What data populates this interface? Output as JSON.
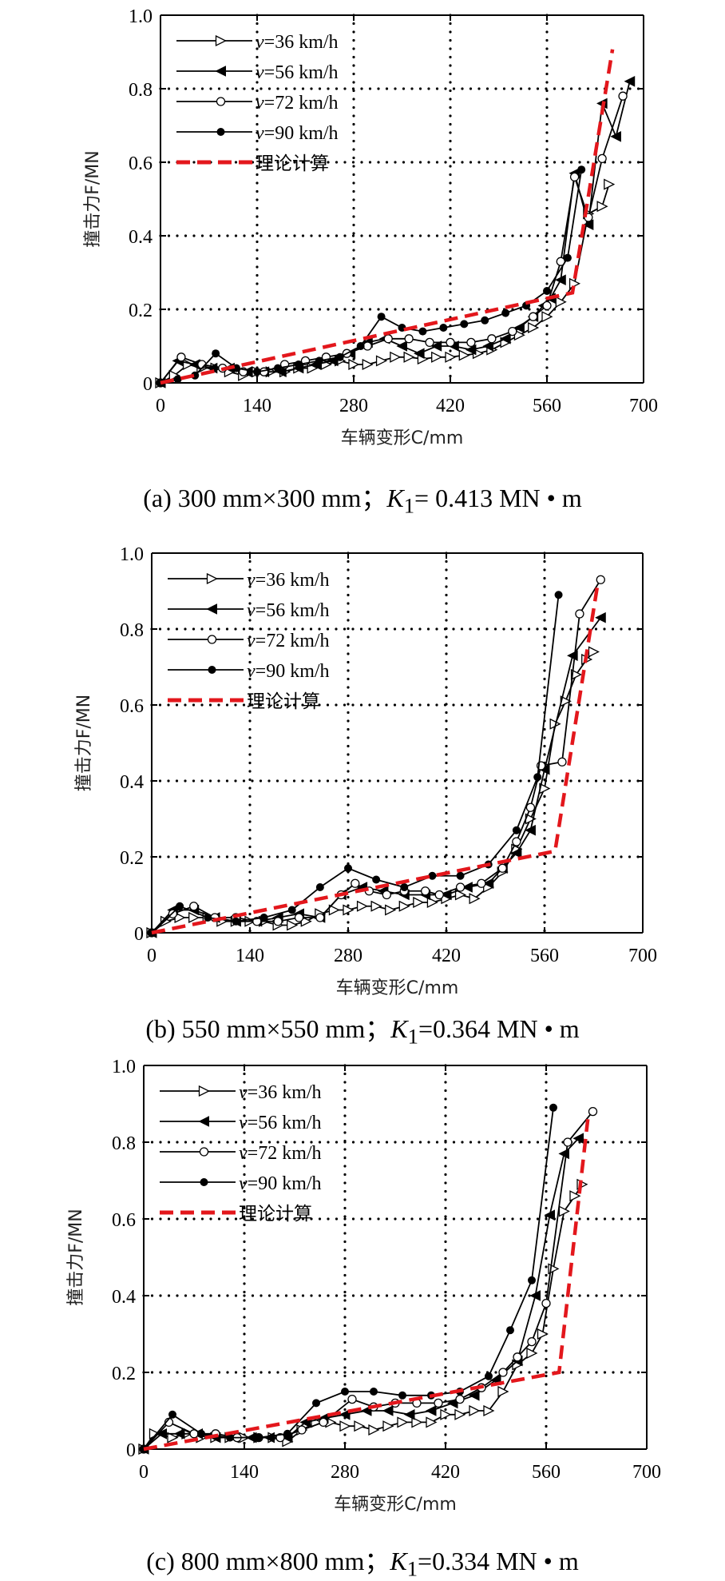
{
  "colors": {
    "series": "#000000",
    "theory": "#e3171c",
    "grid": "#000000"
  },
  "chart_data": [
    {
      "type": "line",
      "panel": "a",
      "caption": {
        "prefix": "(a) 300 mm×300 mm；",
        "k": "K",
        "k_sub": "1",
        "suffix": "= 0.413 MN • m"
      },
      "xlabel": "车辆变形C/mm",
      "ylabel": "撞击力F/MN",
      "xlim": [
        0,
        700
      ],
      "ylim": [
        0,
        1.0
      ],
      "xticks": [
        "0",
        "140",
        "280",
        "420",
        "560",
        "700"
      ],
      "yticks": [
        "0",
        "0.2",
        "0.4",
        "0.6",
        "0.8",
        "1.0"
      ],
      "grid": true,
      "legend": "top-left",
      "series": [
        {
          "name": "v=36 km/h",
          "marker": "triangle-right-open",
          "x": [
            0,
            20,
            40,
            60,
            80,
            100,
            120,
            140,
            160,
            180,
            200,
            220,
            240,
            260,
            280,
            300,
            320,
            340,
            360,
            380,
            400,
            420,
            440,
            460,
            480,
            500,
            520,
            540,
            560,
            580,
            600,
            620,
            640,
            650
          ],
          "y": [
            0,
            0.02,
            0.05,
            0.04,
            0.04,
            0.03,
            0.02,
            0.03,
            0.03,
            0.03,
            0.04,
            0.04,
            0.05,
            0.06,
            0.05,
            0.05,
            0.06,
            0.07,
            0.07,
            0.065,
            0.07,
            0.07,
            0.075,
            0.08,
            0.09,
            0.11,
            0.13,
            0.15,
            0.18,
            0.22,
            0.27,
            0.46,
            0.48,
            0.54
          ]
        },
        {
          "name": "v=56 km/h",
          "marker": "triangle-left-filled",
          "x": [
            0,
            25,
            50,
            75,
            100,
            125,
            150,
            175,
            200,
            225,
            250,
            275,
            300,
            325,
            350,
            375,
            400,
            425,
            450,
            475,
            500,
            520,
            540,
            555,
            565,
            580,
            600,
            620,
            640,
            660,
            680
          ],
          "y": [
            0,
            0.06,
            0.05,
            0.04,
            0.04,
            0.03,
            0.03,
            0.03,
            0.04,
            0.05,
            0.06,
            0.08,
            0.11,
            0.12,
            0.1,
            0.08,
            0.1,
            0.1,
            0.09,
            0.1,
            0.12,
            0.15,
            0.18,
            0.21,
            0.23,
            0.28,
            0.57,
            0.43,
            0.76,
            0.67,
            0.82
          ]
        },
        {
          "name": "v=72 km/h",
          "marker": "circle-open",
          "x": [
            0,
            30,
            60,
            90,
            120,
            150,
            180,
            210,
            240,
            270,
            300,
            330,
            360,
            390,
            420,
            450,
            480,
            510,
            540,
            560,
            580,
            600,
            620,
            640,
            670
          ],
          "y": [
            0,
            0.07,
            0.05,
            0.04,
            0.03,
            0.03,
            0.05,
            0.06,
            0.07,
            0.08,
            0.1,
            0.12,
            0.12,
            0.11,
            0.11,
            0.11,
            0.12,
            0.14,
            0.18,
            0.21,
            0.33,
            0.56,
            0.45,
            0.61,
            0.78
          ]
        },
        {
          "name": "v=90 km/h",
          "marker": "circle-filled",
          "x": [
            0,
            25,
            50,
            80,
            110,
            140,
            170,
            200,
            230,
            260,
            290,
            320,
            350,
            380,
            410,
            440,
            470,
            500,
            530,
            560,
            590,
            610
          ],
          "y": [
            0,
            0.01,
            0.02,
            0.08,
            0.04,
            0.03,
            0.04,
            0.05,
            0.06,
            0.07,
            0.1,
            0.18,
            0.15,
            0.14,
            0.15,
            0.16,
            0.17,
            0.19,
            0.21,
            0.25,
            0.34,
            0.58
          ]
        },
        {
          "name": "理论计算",
          "marker": "none",
          "dashed": true,
          "x": [
            0,
            597,
            655
          ],
          "y": [
            0,
            0.245,
            0.907
          ]
        }
      ]
    },
    {
      "type": "line",
      "panel": "b",
      "caption": {
        "prefix": "(b) 550 mm×550 mm；",
        "k": "K",
        "k_sub": "1",
        "suffix": "=0.364 MN • m"
      },
      "xlabel": "车辆变形C/mm",
      "ylabel": "撞击力F/MN",
      "xlim": [
        0,
        700
      ],
      "ylim": [
        0,
        1.0
      ],
      "xticks": [
        "0",
        "140",
        "280",
        "420",
        "560",
        "700"
      ],
      "yticks": [
        "0",
        "0.2",
        "0.4",
        "0.6",
        "0.8",
        "1.0"
      ],
      "grid": true,
      "legend": "top-left",
      "series": [
        {
          "name": "v=36 km/h",
          "marker": "triangle-right-open",
          "x": [
            0,
            20,
            40,
            60,
            80,
            100,
            120,
            140,
            160,
            180,
            200,
            220,
            240,
            260,
            280,
            300,
            320,
            340,
            360,
            380,
            400,
            420,
            440,
            460,
            480,
            500,
            520,
            540,
            560,
            575,
            590,
            605,
            620,
            630
          ],
          "y": [
            0,
            0.03,
            0.04,
            0.04,
            0.04,
            0.03,
            0.03,
            0.03,
            0.03,
            0.02,
            0.02,
            0.03,
            0.05,
            0.06,
            0.06,
            0.07,
            0.07,
            0.06,
            0.07,
            0.08,
            0.08,
            0.09,
            0.1,
            0.09,
            0.12,
            0.16,
            0.22,
            0.3,
            0.38,
            0.55,
            0.61,
            0.68,
            0.72,
            0.74
          ]
        },
        {
          "name": "v=56 km/h",
          "marker": "triangle-left-filled",
          "x": [
            0,
            30,
            60,
            90,
            120,
            150,
            180,
            210,
            240,
            270,
            300,
            330,
            360,
            390,
            420,
            450,
            480,
            500,
            520,
            540,
            560,
            600,
            640
          ],
          "y": [
            0,
            0.06,
            0.06,
            0.04,
            0.03,
            0.03,
            0.04,
            0.05,
            0.04,
            0.1,
            0.12,
            0.11,
            0.1,
            0.1,
            0.1,
            0.12,
            0.13,
            0.17,
            0.21,
            0.27,
            0.43,
            0.73,
            0.83
          ]
        },
        {
          "name": "v=72 km/h",
          "marker": "circle-open",
          "x": [
            0,
            30,
            60,
            90,
            120,
            150,
            180,
            210,
            240,
            270,
            290,
            310,
            335,
            360,
            390,
            410,
            440,
            470,
            500,
            520,
            540,
            555,
            585,
            610,
            640
          ],
          "y": [
            0,
            0.05,
            0.07,
            0.04,
            0.04,
            0.03,
            0.03,
            0.04,
            0.04,
            0.1,
            0.13,
            0.11,
            0.1,
            0.11,
            0.11,
            0.1,
            0.12,
            0.13,
            0.17,
            0.24,
            0.33,
            0.44,
            0.45,
            0.84,
            0.93
          ]
        },
        {
          "name": "v=90 km/h",
          "marker": "circle-filled",
          "x": [
            0,
            40,
            80,
            120,
            160,
            200,
            240,
            280,
            320,
            360,
            400,
            440,
            480,
            520,
            550,
            580
          ],
          "y": [
            0,
            0.07,
            0.04,
            0.03,
            0.04,
            0.06,
            0.12,
            0.17,
            0.14,
            0.12,
            0.15,
            0.15,
            0.18,
            0.27,
            0.41,
            0.89
          ]
        },
        {
          "name": "理论计算",
          "marker": "none",
          "dashed": true,
          "x": [
            0,
            575,
            635
          ],
          "y": [
            0,
            0.215,
            0.91
          ]
        }
      ]
    },
    {
      "type": "line",
      "panel": "c",
      "caption": {
        "prefix": "(c) 800 mm×800 mm；",
        "k": "K",
        "k_sub": "1",
        "suffix": "=0.334 MN • m"
      },
      "xlabel": "车辆变形C/mm",
      "ylabel": "撞击力F/MN",
      "xlim": [
        0,
        700
      ],
      "ylim": [
        0,
        1.0
      ],
      "xticks": [
        "0",
        "140",
        "280",
        "420",
        "560",
        "700"
      ],
      "yticks": [
        "0",
        "0.2",
        "0.4",
        "0.6",
        "0.8",
        "1.0"
      ],
      "grid": true,
      "legend": "top-left",
      "series": [
        {
          "name": "v=36 km/h",
          "marker": "triangle-right-open",
          "x": [
            0,
            15,
            40,
            60,
            80,
            100,
            120,
            140,
            160,
            180,
            200,
            220,
            240,
            260,
            280,
            300,
            320,
            340,
            360,
            380,
            400,
            420,
            440,
            460,
            480,
            500,
            520,
            540,
            555,
            570,
            585,
            600,
            610
          ],
          "y": [
            0,
            0.04,
            0.03,
            0.04,
            0.03,
            0.03,
            0.03,
            0.03,
            0.03,
            0.03,
            0.02,
            0.05,
            0.07,
            0.07,
            0.06,
            0.06,
            0.05,
            0.06,
            0.07,
            0.07,
            0.07,
            0.09,
            0.09,
            0.1,
            0.1,
            0.15,
            0.22,
            0.25,
            0.3,
            0.47,
            0.62,
            0.66,
            0.69
          ]
        },
        {
          "name": "v=56 km/h",
          "marker": "triangle-left-filled",
          "x": [
            0,
            25,
            50,
            75,
            100,
            125,
            150,
            175,
            200,
            225,
            250,
            280,
            310,
            340,
            370,
            400,
            430,
            460,
            490,
            520,
            545,
            565,
            585,
            605
          ],
          "y": [
            0,
            0.04,
            0.04,
            0.04,
            0.03,
            0.03,
            0.03,
            0.03,
            0.03,
            0.07,
            0.08,
            0.09,
            0.1,
            0.1,
            0.09,
            0.1,
            0.12,
            0.14,
            0.18,
            0.23,
            0.4,
            0.61,
            0.77,
            0.81
          ]
        },
        {
          "name": "v=72 km/h",
          "marker": "circle-open",
          "x": [
            0,
            35,
            70,
            100,
            130,
            160,
            190,
            220,
            250,
            290,
            320,
            350,
            380,
            410,
            440,
            470,
            500,
            520,
            540,
            560,
            590,
            625
          ],
          "y": [
            0,
            0.07,
            0.04,
            0.04,
            0.03,
            0.03,
            0.03,
            0.05,
            0.07,
            0.13,
            0.11,
            0.12,
            0.12,
            0.12,
            0.13,
            0.16,
            0.2,
            0.24,
            0.28,
            0.38,
            0.8,
            0.88
          ]
        },
        {
          "name": "v=90 km/h",
          "marker": "circle-filled",
          "x": [
            0,
            40,
            80,
            120,
            160,
            200,
            240,
            280,
            320,
            360,
            400,
            440,
            480,
            510,
            540,
            570
          ],
          "y": [
            0,
            0.09,
            0.04,
            0.03,
            0.03,
            0.04,
            0.12,
            0.15,
            0.15,
            0.14,
            0.14,
            0.15,
            0.19,
            0.31,
            0.44,
            0.89
          ]
        },
        {
          "name": "理论计算",
          "marker": "none",
          "dashed": true,
          "x": [
            0,
            578,
            618
          ],
          "y": [
            0,
            0.2,
            0.86
          ]
        }
      ]
    }
  ]
}
